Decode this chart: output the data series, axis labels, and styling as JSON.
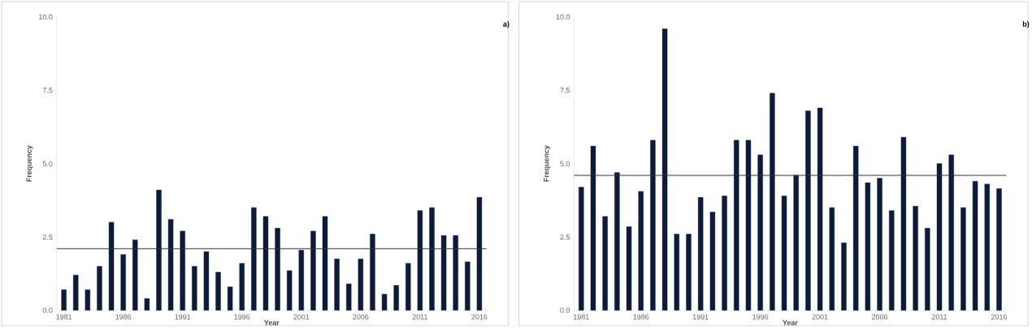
{
  "chart_data": [
    {
      "type": "bar",
      "xlabel": "Year",
      "ylabel": "Frequency",
      "annotations": [
        "a)"
      ],
      "categories": [
        "1981",
        null,
        null,
        null,
        null,
        "1986",
        null,
        null,
        null,
        null,
        "1991",
        null,
        null,
        null,
        null,
        "1996",
        null,
        null,
        null,
        null,
        "2001",
        null,
        null,
        null,
        null,
        "2006",
        null,
        null,
        null,
        null,
        "2011",
        null,
        null,
        null,
        null,
        "2016"
      ],
      "values": [
        0.7,
        1.2,
        0.7,
        1.5,
        3.0,
        1.9,
        2.4,
        0.4,
        4.1,
        3.1,
        2.7,
        1.5,
        2.0,
        1.3,
        0.8,
        1.6,
        3.5,
        3.2,
        2.8,
        1.35,
        2.05,
        2.7,
        3.2,
        1.75,
        0.9,
        1.75,
        2.6,
        0.55,
        0.85,
        1.6,
        3.4,
        3.5,
        2.55,
        2.55,
        1.65,
        3.85
      ],
      "color": "#0d1b3a",
      "ylim": [
        0,
        10
      ],
      "yticks": [
        {
          "value": 0,
          "label": "0.0"
        },
        {
          "value": 2.5,
          "label": "2.5"
        },
        {
          "value": 5,
          "label": "5.0"
        },
        {
          "value": 7.5,
          "label": "7.5"
        },
        {
          "value": 10,
          "label": "10.0"
        }
      ],
      "ref_lines": [
        {
          "axis": "y",
          "value": 2.1,
          "color": "#333333"
        }
      ]
    },
    {
      "type": "bar",
      "xlabel": "Year",
      "ylabel": "Frequency",
      "annotations": [
        "b)"
      ],
      "categories": [
        "1981",
        null,
        null,
        null,
        null,
        "1986",
        null,
        null,
        null,
        null,
        "1991",
        null,
        null,
        null,
        null,
        "1996",
        null,
        null,
        null,
        null,
        "2001",
        null,
        null,
        null,
        null,
        "2006",
        null,
        null,
        null,
        null,
        "2011",
        null,
        null,
        null,
        null,
        "2016"
      ],
      "values": [
        4.2,
        5.6,
        3.2,
        4.7,
        2.85,
        4.05,
        5.8,
        9.6,
        2.6,
        2.6,
        3.85,
        3.35,
        3.9,
        5.8,
        5.8,
        5.3,
        7.4,
        3.9,
        4.6,
        6.8,
        6.9,
        3.5,
        2.3,
        5.6,
        4.35,
        4.5,
        3.4,
        5.9,
        3.55,
        2.8,
        5.0,
        5.3,
        3.5,
        4.4,
        4.3,
        4.15
      ],
      "color": "#0d1b3a",
      "ylim": [
        0,
        10
      ],
      "yticks": [
        {
          "value": 0,
          "label": "0.0"
        },
        {
          "value": 2.5,
          "label": "2.5"
        },
        {
          "value": 5,
          "label": "5.0"
        },
        {
          "value": 7.5,
          "label": "7.5"
        },
        {
          "value": 10,
          "label": "10.0"
        }
      ],
      "ref_lines": [
        {
          "axis": "y",
          "value": 4.6,
          "color": "#333333"
        }
      ]
    }
  ]
}
